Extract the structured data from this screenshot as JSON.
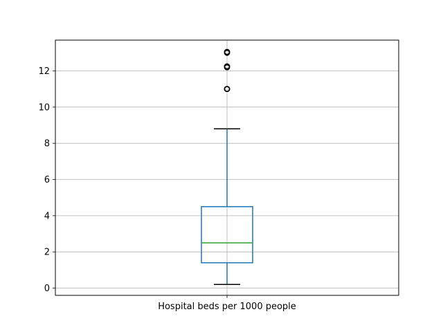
{
  "chart_data": {
    "type": "box",
    "title": "",
    "xlabel": "",
    "ylabel": "",
    "categories": [
      "Hospital beds per 1000 people"
    ],
    "ylim": [
      -0.4,
      13.7
    ],
    "y_ticks": [
      0,
      2,
      4,
      6,
      8,
      10,
      12
    ],
    "grid": true,
    "boxes": [
      {
        "name": "Hospital beds per 1000 people",
        "whisker_low": 0.2,
        "q1": 1.4,
        "median": 2.5,
        "q3": 4.5,
        "whisker_high": 8.8,
        "outliers": [
          11.0,
          11.0,
          12.2,
          12.25,
          13.05,
          13.0
        ]
      }
    ],
    "colors": {
      "box": "#1f77b4",
      "median": "#2ca02c",
      "caps": "#000000",
      "grid": "#b0b0b0",
      "outlier": "#000000"
    }
  }
}
